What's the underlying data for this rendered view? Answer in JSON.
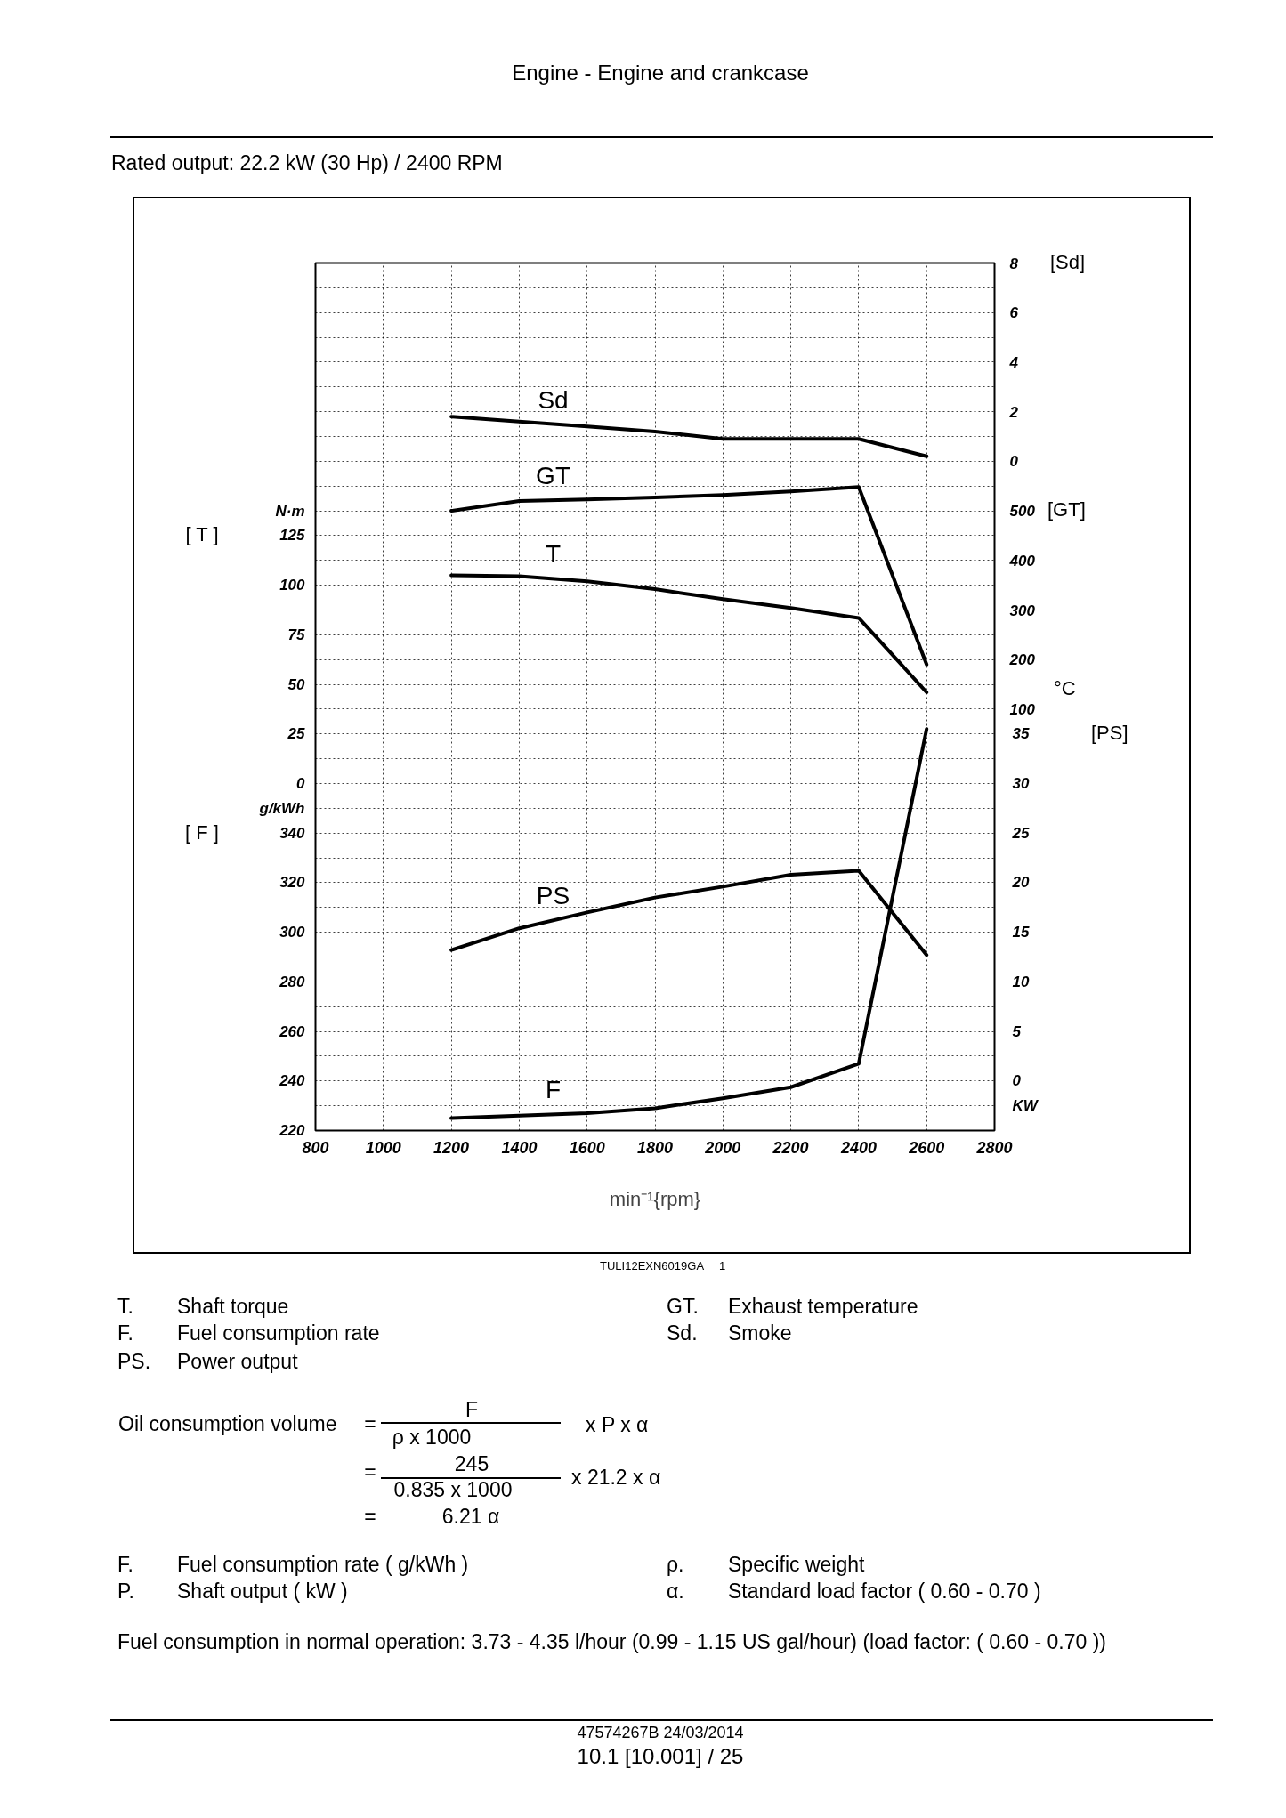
{
  "chart_data": [
    {
      "type": "line",
      "title": "Rated output: 22.2 kW (30 Hp) / 2400 RPM",
      "xlabel": "min⁻¹{rpm}",
      "ylabel": "[ F ]",
      "y2label": "[GT]",
      "y3label": "[PS]",
      "x": [
        1200,
        1400,
        1600,
        1800,
        2000,
        2200,
        2400,
        2600
      ],
      "xlim": [
        800,
        2800
      ],
      "xticks": [
        800,
        1000,
        1200,
        1400,
        1600,
        1800,
        2000,
        2200,
        2400,
        2600,
        2800
      ],
      "ylim": [
        220,
        570
      ],
      "yticks": [
        220,
        {
          "value": 230,
          "label": null
        },
        240,
        {
          "value": 250,
          "label": null
        },
        260,
        {
          "value": 270,
          "label": null
        },
        280,
        {
          "value": 290,
          "label": null
        },
        300,
        {
          "value": 310,
          "label": null
        },
        320,
        {
          "value": 330,
          "label": null
        },
        340,
        {
          "value": 350,
          "label": "g/kWh"
        },
        {
          "value": 360,
          "label": null
        },
        {
          "value": 370,
          "label": null
        },
        {
          "value": 380,
          "label": null
        },
        {
          "value": 390,
          "label": null
        },
        {
          "value": 400,
          "label": null
        },
        {
          "value": 410,
          "label": null
        },
        {
          "value": 420,
          "label": null
        },
        {
          "value": 430,
          "label": null
        },
        {
          "value": 440,
          "label": null
        },
        {
          "value": 450,
          "label": null
        },
        {
          "value": 460,
          "label": null
        },
        {
          "value": 470,
          "label": null
        },
        {
          "value": 480,
          "label": null
        },
        {
          "value": 490,
          "label": null
        },
        {
          "value": 500,
          "label": null
        },
        {
          "value": 510,
          "label": null
        },
        {
          "value": 520,
          "label": null
        },
        {
          "value": 530,
          "label": null
        },
        {
          "value": 540,
          "label": null
        },
        {
          "value": 550,
          "label": null
        },
        {
          "value": 560,
          "label": null
        },
        {
          "value": 570,
          "label": null
        }
      ],
      "y2lim": [
        -750,
        1000
      ],
      "y2ticks": [
        100,
        200,
        300,
        400,
        500
      ],
      "y3lim": [
        -5,
        82.5
      ],
      "y3ticks": [
        {
          "value": -2.5,
          "label": "KW"
        },
        0,
        5,
        10,
        15,
        20,
        25,
        30,
        35
      ],
      "series": [
        {
          "name": "GT",
          "color": "#000000",
          "axis": "y2",
          "values": [
            500,
            520,
            523,
            527,
            532,
            539,
            548,
            190
          ]
        },
        {
          "name": "PS",
          "color": "#000000",
          "axis": "y3",
          "values": [
            13.2,
            15.4,
            17.0,
            18.5,
            19.6,
            20.8,
            21.2,
            12.7
          ]
        },
        {
          "name": "F",
          "color": "#000000",
          "values": [
            225,
            226,
            227,
            229,
            233,
            237.5,
            247,
            382
          ]
        }
      ],
      "grid": true,
      "annotations": [
        "Engine - Engine and crankcase",
        "°C",
        "TULI12EXN6019GA",
        "1",
        "T.",
        "Shaft torque",
        "F.",
        "Fuel consumption rate",
        "PS.",
        "Power output",
        "GT.",
        "Exhaust temperature",
        "Sd.",
        "Smoke",
        "Oil consumption volume",
        "=",
        "F",
        "ρ x 1000",
        "x P x α",
        "=",
        "245",
        "0.835 x 1000",
        "x 21.2 x α",
        "=",
        "6.21 α",
        "F.",
        "Fuel consumption rate ( g/kWh )",
        "P.",
        "Shaft output ( kW )",
        "ρ.",
        "Specific weight",
        "α.",
        "Standard load factor ( 0.60 - 0.70 )",
        "Fuel consumption in normal operation: 3.73 - 4.35 l/hour (0.99 - 1.15 US gal/hour) (load factor: ( 0.60 - 0.70 ))",
        "47574267B 24/03/2014",
        "10.1 [10.001] / 25"
      ]
    },
    {
      "type": "line",
      "x": [
        1200,
        1400,
        1600,
        1800,
        2000,
        2200,
        2400,
        2600
      ],
      "xlim": [
        800,
        2800
      ],
      "tick_labels": "y",
      "ylabel": "[ T ]",
      "y2label": "[Sd]",
      "ylim": [
        -175,
        262.5
      ],
      "yticks": [
        0,
        25,
        50,
        75,
        100,
        125,
        {
          "value": 137.5,
          "label": "N·m"
        }
      ],
      "y2lim": [
        -27,
        8
      ],
      "y2ticks": [
        0,
        2,
        4,
        6,
        8
      ],
      "series": [
        {
          "name": "Sd",
          "color": "#000000",
          "axis": "y2",
          "values": [
            1.8,
            1.6,
            1.4,
            1.2,
            0.9,
            0.9,
            0.9,
            0.2
          ]
        },
        {
          "name": "T",
          "color": "#000000",
          "values": [
            105,
            104.5,
            102,
            98,
            93,
            88.5,
            83.5,
            46
          ]
        }
      ]
    }
  ]
}
